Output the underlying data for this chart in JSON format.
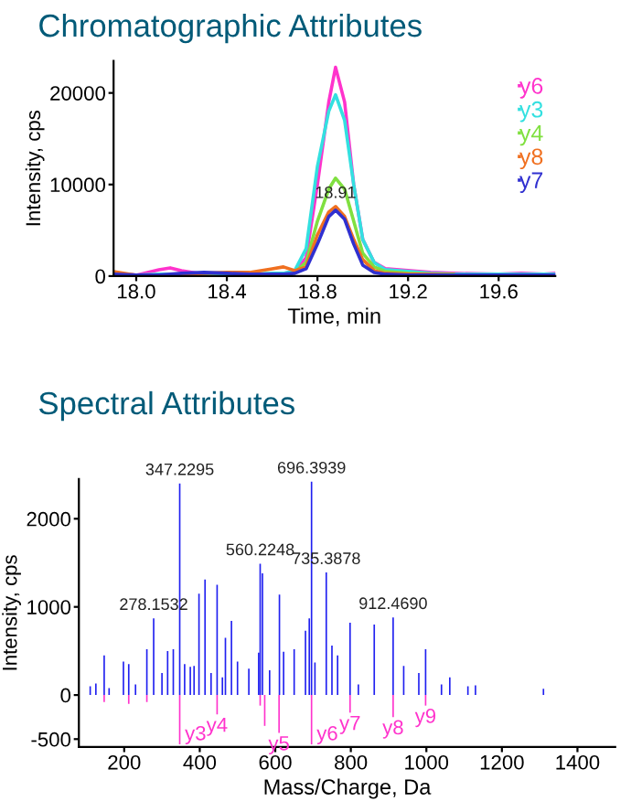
{
  "chart_data": [
    {
      "type": "line",
      "title": "Chromatographic Attributes",
      "xlabel": "Time, min",
      "ylabel": "Intensity, cps",
      "x": [
        17.9,
        18.0,
        18.1,
        18.15,
        18.2,
        18.3,
        18.4,
        18.5,
        18.6,
        18.65,
        18.7,
        18.75,
        18.8,
        18.85,
        18.88,
        18.92,
        18.96,
        19.0,
        19.05,
        19.1,
        19.2,
        19.3,
        19.4,
        19.6,
        19.7,
        19.8,
        19.85
      ],
      "series": [
        {
          "name": "y6",
          "color": "#ff33cc",
          "values": [
            300,
            100,
            700,
            900,
            600,
            200,
            100,
            100,
            200,
            300,
            500,
            2000,
            10000,
            19000,
            22800,
            19000,
            10000,
            4000,
            1500,
            800,
            600,
            400,
            300,
            200,
            300,
            200,
            300
          ]
        },
        {
          "name": "y3",
          "color": "#33e0e0",
          "values": [
            200,
            100,
            200,
            200,
            200,
            300,
            200,
            200,
            300,
            300,
            600,
            3000,
            12000,
            18000,
            19800,
            17000,
            10000,
            4000,
            1500,
            700,
            500,
            300,
            200,
            200,
            200,
            200,
            200
          ]
        },
        {
          "name": "y4",
          "color": "#80e040",
          "values": [
            null,
            null,
            null,
            null,
            null,
            null,
            null,
            null,
            null,
            null,
            400,
            1500,
            6000,
            9500,
            10700,
            9500,
            6000,
            2500,
            1000,
            500,
            300,
            200,
            200,
            null,
            null,
            null,
            null
          ]
        },
        {
          "name": "y8",
          "color": "#f07020",
          "values": [
            500,
            100,
            100,
            100,
            200,
            300,
            400,
            400,
            800,
            1000,
            600,
            1000,
            4500,
            7000,
            7600,
            6500,
            4000,
            1800,
            600,
            300,
            200,
            200,
            100,
            100,
            null,
            null,
            null
          ]
        },
        {
          "name": "y7",
          "color": "#3030d0",
          "values": [
            200,
            100,
            100,
            200,
            300,
            400,
            300,
            200,
            200,
            200,
            300,
            800,
            3500,
            6500,
            7200,
            6200,
            3500,
            1200,
            400,
            200,
            100,
            100,
            100,
            100,
            100,
            100,
            100
          ]
        }
      ],
      "annotations": [
        {
          "text": "18.91",
          "x": 18.88,
          "y": 7600
        }
      ],
      "xlim": [
        17.9,
        19.85
      ],
      "ylim": [
        0,
        23500
      ],
      "xticks": [
        {
          "value": 18.0,
          "label": "18.0"
        },
        18.4,
        18.8,
        19.2,
        19.6
      ],
      "yticks": [
        0,
        10000,
        20000
      ],
      "legend": "top right",
      "grid": false
    },
    {
      "type": "bar",
      "title": "Spectral Attributes",
      "xlabel": "Mass/Charge, Da",
      "ylabel": "Intensity, cps",
      "series": [
        {
          "color": "#2020f0",
          "x": [
            110,
            125,
            147,
            160,
            198,
            212,
            230,
            260,
            278,
            300,
            315,
            330,
            347,
            360,
            375,
            385,
            398,
            414,
            430,
            446,
            460,
            468,
            484,
            500,
            530,
            556,
            560,
            566,
            585,
            611,
            622,
            650,
            680,
            690,
            696,
            705,
            735,
            750,
            765,
            798,
            820,
            862,
            912,
            940,
            980,
            998,
            1040,
            1062,
            1110,
            1130,
            1310
          ],
          "values": [
            100,
            130,
            450,
            80,
            380,
            350,
            120,
            520,
            870,
            250,
            500,
            520,
            2400,
            350,
            320,
            330,
            1150,
            1310,
            250,
            1250,
            200,
            650,
            840,
            380,
            300,
            480,
            1490,
            1380,
            280,
            1140,
            490,
            520,
            730,
            870,
            2420,
            370,
            1390,
            560,
            450,
            820,
            120,
            800,
            880,
            330,
            250,
            520,
            120,
            200,
            100,
            110,
            70
          ]
        },
        {
          "color": "#ff33cc",
          "x": [
            147,
            212,
            260,
            347,
            446,
            560,
            572,
            610,
            696,
            798,
            912,
            998
          ],
          "values": [
            -80,
            -100,
            -80,
            -560,
            -220,
            -120,
            -350,
            -430,
            -560,
            -200,
            -250,
            -120
          ]
        }
      ],
      "annotations": [
        {
          "text": "347.2295",
          "x": 347,
          "y": 2400
        },
        {
          "text": "696.3939",
          "x": 696,
          "y": 2420
        },
        {
          "text": "560.2248",
          "x": 560,
          "y": 1490
        },
        {
          "text": "735.3878",
          "x": 735,
          "y": 1390
        },
        {
          "text": "278.1532",
          "x": 278,
          "y": 870
        },
        {
          "text": "912.4690",
          "x": 912,
          "y": 880
        },
        {
          "text": "y3",
          "x": 347,
          "y": -560
        },
        {
          "text": "y4",
          "x": 446,
          "y": -220
        },
        {
          "text": "y5",
          "x": 610,
          "y": -430
        },
        {
          "text": "y6",
          "x": 696,
          "y": -560
        },
        {
          "text": "y7",
          "x": 798,
          "y": -200
        },
        {
          "text": "y8",
          "x": 912,
          "y": -250
        },
        {
          "text": "y9",
          "x": 998,
          "y": -120
        }
      ],
      "xlim": [
        80,
        1500
      ],
      "ylim": [
        -590,
        2450
      ],
      "xticks": [
        200,
        400,
        600,
        800,
        1000,
        1200,
        1400
      ],
      "yticks": [
        -500,
        0,
        1000,
        2000
      ],
      "grid": false
    }
  ]
}
